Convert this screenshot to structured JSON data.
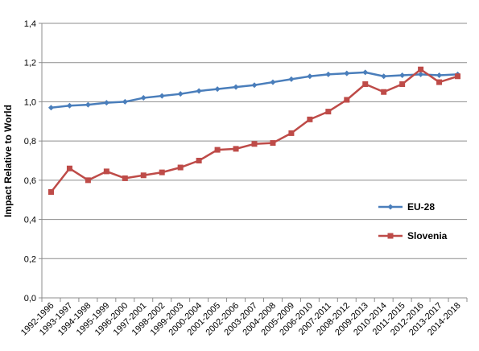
{
  "chart_data": {
    "type": "line",
    "ylabel": "Impact Relative to World",
    "xlabel": "",
    "title": "",
    "ylim": [
      0,
      1.4
    ],
    "yticks": [
      "0,0",
      "0,2",
      "0,4",
      "0,6",
      "0,8",
      "1,0",
      "1,2",
      "1,4"
    ],
    "grid": true,
    "legend_position": "right",
    "categories": [
      "1992-1996",
      "1993-1997",
      "1994-1998",
      "1995-1999",
      "1996-2000",
      "1997-2001",
      "1998-2002",
      "1999-2003",
      "2000-2004",
      "2001-2005",
      "2002-2006",
      "2003-2007",
      "2004-2008",
      "2005-2009",
      "2006-2010",
      "2007-2011",
      "2008-2012",
      "2009-2013",
      "2010-2014",
      "2011-2015",
      "2012-2016",
      "2013-2017",
      "2014-2018"
    ],
    "series": [
      {
        "name": "EU-28",
        "color": "#4a7ebb",
        "marker": "diamond",
        "values": [
          0.97,
          0.98,
          0.985,
          0.995,
          1.0,
          1.02,
          1.03,
          1.04,
          1.055,
          1.065,
          1.075,
          1.085,
          1.1,
          1.115,
          1.13,
          1.14,
          1.145,
          1.15,
          1.13,
          1.135,
          1.14,
          1.135,
          1.14
        ]
      },
      {
        "name": "Slovenia",
        "color": "#be4b48",
        "marker": "square",
        "values": [
          0.54,
          0.66,
          0.6,
          0.645,
          0.61,
          0.625,
          0.64,
          0.665,
          0.7,
          0.755,
          0.76,
          0.785,
          0.79,
          0.84,
          0.91,
          0.95,
          1.01,
          1.09,
          1.05,
          1.09,
          1.165,
          1.1,
          1.13
        ]
      }
    ]
  }
}
